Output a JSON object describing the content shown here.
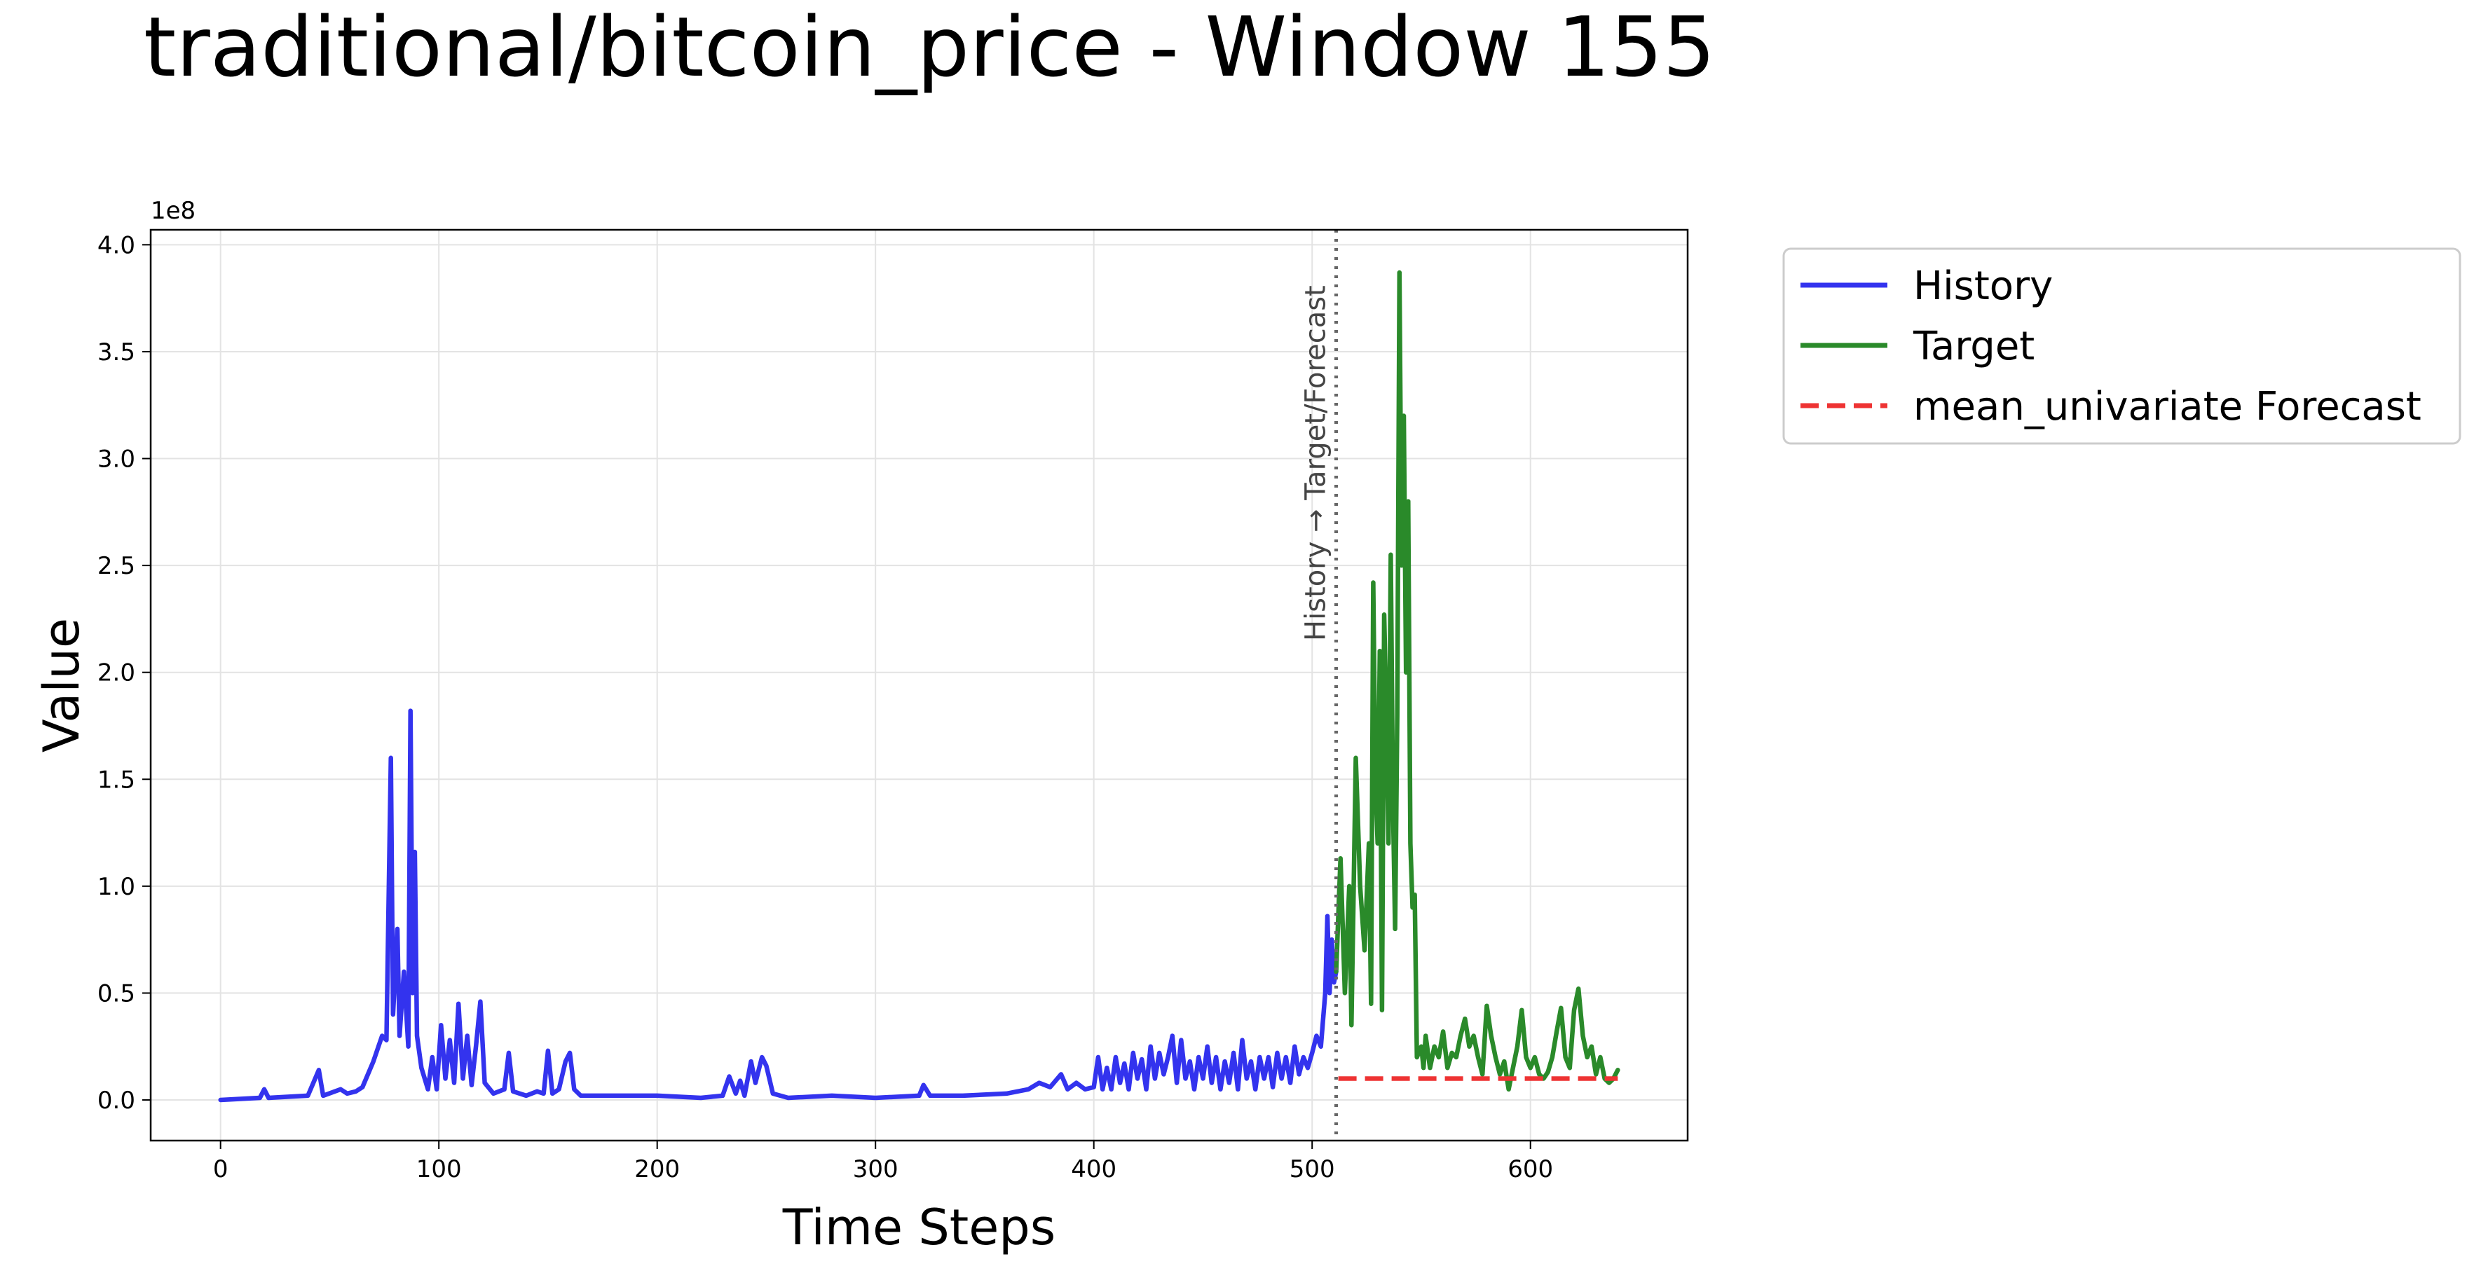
{
  "chart_data": {
    "type": "line",
    "title": "traditional/bitcoin_price - Window 155",
    "xlabel": "Time Steps",
    "ylabel": "Value",
    "y_multiplier_label": "1e8",
    "xlim": [
      -32,
      672
    ],
    "ylim": [
      -0.19,
      4.07
    ],
    "x_ticks": [
      0,
      100,
      200,
      300,
      400,
      500,
      600
    ],
    "y_ticks": [
      0.0,
      0.5,
      1.0,
      1.5,
      2.0,
      2.5,
      3.0,
      3.5,
      4.0
    ],
    "x_tick_labels": [
      "0",
      "100",
      "200",
      "300",
      "400",
      "500",
      "600"
    ],
    "y_tick_labels": [
      "0.0",
      "0.5",
      "1.0",
      "1.5",
      "2.0",
      "2.5",
      "3.0",
      "3.5",
      "4.0"
    ],
    "grid": true,
    "legend_position": "outside-top-right",
    "divider": {
      "x": 511,
      "label": "History → Target/Forecast"
    },
    "series": [
      {
        "name": "History",
        "color": "#3333ee",
        "style": "solid",
        "points": [
          [
            0,
            0.0
          ],
          [
            18,
            0.01
          ],
          [
            20,
            0.05
          ],
          [
            22,
            0.01
          ],
          [
            40,
            0.02
          ],
          [
            45,
            0.14
          ],
          [
            47,
            0.02
          ],
          [
            55,
            0.05
          ],
          [
            58,
            0.03
          ],
          [
            62,
            0.04
          ],
          [
            65,
            0.06
          ],
          [
            70,
            0.18
          ],
          [
            74,
            0.3
          ],
          [
            76,
            0.28
          ],
          [
            78,
            1.6
          ],
          [
            79,
            0.4
          ],
          [
            81,
            0.8
          ],
          [
            82,
            0.3
          ],
          [
            84,
            0.6
          ],
          [
            86,
            0.25
          ],
          [
            87,
            1.82
          ],
          [
            88,
            0.5
          ],
          [
            89,
            1.16
          ],
          [
            90,
            0.3
          ],
          [
            92,
            0.15
          ],
          [
            95,
            0.05
          ],
          [
            97,
            0.2
          ],
          [
            99,
            0.05
          ],
          [
            101,
            0.35
          ],
          [
            103,
            0.1
          ],
          [
            105,
            0.28
          ],
          [
            107,
            0.08
          ],
          [
            109,
            0.45
          ],
          [
            111,
            0.1
          ],
          [
            113,
            0.3
          ],
          [
            115,
            0.07
          ],
          [
            117,
            0.25
          ],
          [
            119,
            0.46
          ],
          [
            121,
            0.08
          ],
          [
            125,
            0.03
          ],
          [
            130,
            0.05
          ],
          [
            132,
            0.22
          ],
          [
            134,
            0.04
          ],
          [
            140,
            0.02
          ],
          [
            145,
            0.04
          ],
          [
            148,
            0.03
          ],
          [
            150,
            0.23
          ],
          [
            152,
            0.03
          ],
          [
            155,
            0.05
          ],
          [
            158,
            0.18
          ],
          [
            160,
            0.22
          ],
          [
            162,
            0.05
          ],
          [
            165,
            0.02
          ],
          [
            180,
            0.02
          ],
          [
            200,
            0.02
          ],
          [
            220,
            0.01
          ],
          [
            230,
            0.02
          ],
          [
            233,
            0.11
          ],
          [
            236,
            0.03
          ],
          [
            238,
            0.09
          ],
          [
            240,
            0.02
          ],
          [
            243,
            0.18
          ],
          [
            245,
            0.08
          ],
          [
            248,
            0.2
          ],
          [
            250,
            0.16
          ],
          [
            253,
            0.03
          ],
          [
            260,
            0.01
          ],
          [
            280,
            0.02
          ],
          [
            300,
            0.01
          ],
          [
            320,
            0.02
          ],
          [
            322,
            0.07
          ],
          [
            325,
            0.02
          ],
          [
            340,
            0.02
          ],
          [
            360,
            0.03
          ],
          [
            370,
            0.05
          ],
          [
            375,
            0.08
          ],
          [
            380,
            0.06
          ],
          [
            385,
            0.12
          ],
          [
            388,
            0.05
          ],
          [
            392,
            0.08
          ],
          [
            396,
            0.05
          ],
          [
            400,
            0.06
          ],
          [
            402,
            0.2
          ],
          [
            404,
            0.05
          ],
          [
            406,
            0.15
          ],
          [
            408,
            0.05
          ],
          [
            410,
            0.2
          ],
          [
            412,
            0.08
          ],
          [
            414,
            0.17
          ],
          [
            416,
            0.05
          ],
          [
            418,
            0.22
          ],
          [
            420,
            0.1
          ],
          [
            422,
            0.19
          ],
          [
            424,
            0.05
          ],
          [
            426,
            0.25
          ],
          [
            428,
            0.1
          ],
          [
            430,
            0.22
          ],
          [
            432,
            0.12
          ],
          [
            434,
            0.2
          ],
          [
            436,
            0.3
          ],
          [
            438,
            0.08
          ],
          [
            440,
            0.28
          ],
          [
            442,
            0.1
          ],
          [
            444,
            0.18
          ],
          [
            446,
            0.05
          ],
          [
            448,
            0.2
          ],
          [
            450,
            0.1
          ],
          [
            452,
            0.25
          ],
          [
            454,
            0.08
          ],
          [
            456,
            0.2
          ],
          [
            458,
            0.05
          ],
          [
            460,
            0.18
          ],
          [
            462,
            0.08
          ],
          [
            464,
            0.22
          ],
          [
            466,
            0.05
          ],
          [
            468,
            0.28
          ],
          [
            470,
            0.1
          ],
          [
            472,
            0.18
          ],
          [
            474,
            0.05
          ],
          [
            476,
            0.2
          ],
          [
            478,
            0.1
          ],
          [
            480,
            0.2
          ],
          [
            482,
            0.06
          ],
          [
            484,
            0.22
          ],
          [
            486,
            0.1
          ],
          [
            488,
            0.2
          ],
          [
            490,
            0.08
          ],
          [
            492,
            0.25
          ],
          [
            494,
            0.12
          ],
          [
            496,
            0.2
          ],
          [
            498,
            0.15
          ],
          [
            500,
            0.22
          ],
          [
            502,
            0.3
          ],
          [
            504,
            0.25
          ],
          [
            506,
            0.5
          ],
          [
            507,
            0.86
          ],
          [
            508,
            0.5
          ],
          [
            509,
            0.75
          ],
          [
            510,
            0.55
          ],
          [
            511,
            0.6
          ]
        ]
      },
      {
        "name": "Target",
        "color": "#2a8a2a",
        "style": "solid",
        "points": [
          [
            511,
            0.6
          ],
          [
            513,
            1.13
          ],
          [
            515,
            0.5
          ],
          [
            517,
            1.0
          ],
          [
            518,
            0.35
          ],
          [
            520,
            1.6
          ],
          [
            522,
            1.0
          ],
          [
            524,
            0.7
          ],
          [
            526,
            1.2
          ],
          [
            527,
            0.45
          ],
          [
            528,
            2.42
          ],
          [
            529,
            1.5
          ],
          [
            530,
            1.2
          ],
          [
            531,
            2.1
          ],
          [
            532,
            0.42
          ],
          [
            533,
            2.27
          ],
          [
            534,
            1.8
          ],
          [
            535,
            1.2
          ],
          [
            536,
            2.55
          ],
          [
            537,
            1.4
          ],
          [
            538,
            0.8
          ],
          [
            539,
            1.8
          ],
          [
            540,
            3.87
          ],
          [
            541,
            2.5
          ],
          [
            542,
            3.2
          ],
          [
            543,
            2.0
          ],
          [
            544,
            2.8
          ],
          [
            545,
            1.2
          ],
          [
            546,
            0.9
          ],
          [
            547,
            0.96
          ],
          [
            548,
            0.2
          ],
          [
            550,
            0.25
          ],
          [
            551,
            0.15
          ],
          [
            552,
            0.3
          ],
          [
            554,
            0.15
          ],
          [
            556,
            0.25
          ],
          [
            558,
            0.2
          ],
          [
            560,
            0.32
          ],
          [
            562,
            0.15
          ],
          [
            564,
            0.22
          ],
          [
            566,
            0.2
          ],
          [
            568,
            0.3
          ],
          [
            570,
            0.38
          ],
          [
            572,
            0.25
          ],
          [
            574,
            0.3
          ],
          [
            576,
            0.2
          ],
          [
            578,
            0.12
          ],
          [
            580,
            0.44
          ],
          [
            582,
            0.3
          ],
          [
            584,
            0.2
          ],
          [
            586,
            0.12
          ],
          [
            588,
            0.18
          ],
          [
            590,
            0.05
          ],
          [
            592,
            0.15
          ],
          [
            594,
            0.25
          ],
          [
            596,
            0.42
          ],
          [
            598,
            0.2
          ],
          [
            600,
            0.15
          ],
          [
            602,
            0.2
          ],
          [
            604,
            0.12
          ],
          [
            606,
            0.1
          ],
          [
            608,
            0.13
          ],
          [
            610,
            0.2
          ],
          [
            612,
            0.32
          ],
          [
            614,
            0.43
          ],
          [
            616,
            0.2
          ],
          [
            618,
            0.15
          ],
          [
            620,
            0.42
          ],
          [
            622,
            0.52
          ],
          [
            624,
            0.3
          ],
          [
            626,
            0.2
          ],
          [
            628,
            0.25
          ],
          [
            630,
            0.12
          ],
          [
            632,
            0.2
          ],
          [
            634,
            0.1
          ],
          [
            636,
            0.08
          ],
          [
            638,
            0.1
          ],
          [
            640,
            0.14
          ]
        ]
      },
      {
        "name": "mean_univariate Forecast",
        "color": "#ee3333",
        "style": "dashed",
        "points": [
          [
            512,
            0.1
          ],
          [
            640,
            0.1
          ]
        ]
      }
    ]
  }
}
